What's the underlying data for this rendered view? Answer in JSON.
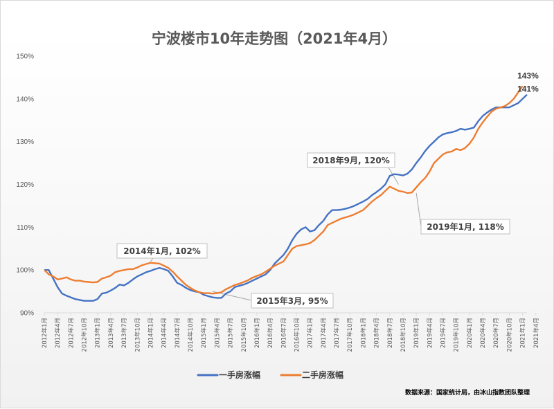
{
  "chart_data": {
    "type": "line",
    "title": "宁波楼市10年走势图（2021年4月）",
    "ylim": [
      90,
      150
    ],
    "yticks": [
      90,
      100,
      110,
      120,
      130,
      140,
      150
    ],
    "ytick_labels": [
      "90%",
      "100%",
      "110%",
      "120%",
      "130%",
      "140%",
      "150%"
    ],
    "grid": "none",
    "legend_position": "bottom",
    "x_tick_labels": [
      "2012年1月",
      "2012年4月",
      "2012年7月",
      "2012年10月",
      "2013年1月",
      "2013年4月",
      "2013年7月",
      "2013年10月",
      "2014年1月",
      "2014年4月",
      "2014年7月",
      "2014年10月",
      "2015年1月",
      "2015年4月",
      "2015年7月",
      "2015年10月",
      "2016年1月",
      "2016年4月",
      "2016年7月",
      "2016年10月",
      "2017年1月",
      "2017年4月",
      "2017年7月",
      "2017年10月",
      "2018年1月",
      "2018年4月",
      "2018年7月",
      "2018年10月",
      "2019年1月",
      "2019年4月",
      "2019年7月",
      "2019年10月",
      "2020年1月",
      "2020年4月",
      "2020年7月",
      "2020年10月",
      "2021年1月",
      "2021年4月"
    ],
    "series": [
      {
        "name": "一手房涨幅",
        "color": "#4472c4",
        "values": [
          100,
          100,
          98,
          96,
          94.5,
          94,
          93.6,
          93.2,
          93,
          92.8,
          92.8,
          92.8,
          93.2,
          94.5,
          94.7,
          95.2,
          95.8,
          96.6,
          96.4,
          97,
          97.8,
          98.5,
          99,
          99.5,
          99.8,
          100.2,
          100.5,
          100.2,
          99.8,
          98.5,
          97,
          96.5,
          95.8,
          95.3,
          95,
          94.8,
          94.2,
          93.9,
          93.6,
          93.5,
          93.5,
          94.5,
          95,
          96,
          96.3,
          96.6,
          97,
          97.5,
          98,
          98.5,
          99,
          100,
          101.5,
          102.5,
          103.5,
          105,
          107,
          108.5,
          109.5,
          110,
          109,
          109.3,
          110.5,
          111.5,
          113,
          114,
          114,
          114.1,
          114.3,
          114.6,
          115,
          115.5,
          116,
          116.6,
          117.5,
          118.2,
          119,
          120,
          122,
          122.4,
          122.3,
          122.1,
          122.5,
          123.5,
          125,
          126.3,
          127.8,
          129,
          130,
          131,
          131.7,
          132,
          132.2,
          132.5,
          133,
          132.8,
          133,
          133.3,
          134.8,
          136,
          136.8,
          137.5,
          138,
          138,
          138,
          138,
          138.5,
          139,
          140,
          141
        ]
      },
      {
        "name": "二手房涨幅",
        "color": "#ed7d31",
        "values": [
          100,
          99,
          98.5,
          97.8,
          98,
          98.3,
          97.8,
          97.5,
          97.5,
          97.3,
          97.2,
          97.1,
          97.2,
          98,
          98.3,
          98.7,
          99.5,
          99.8,
          100,
          100.2,
          100.2,
          100.6,
          101.1,
          101.4,
          101.7,
          101.6,
          101.5,
          101,
          100.5,
          99.6,
          98.5,
          97.5,
          96.5,
          95.8,
          95.2,
          94.8,
          94.6,
          94.6,
          94.5,
          94.6,
          94.8,
          95.5,
          96,
          96.5,
          96.8,
          97.2,
          97.6,
          98.2,
          98.6,
          99,
          99.6,
          100.3,
          101,
          101.5,
          102,
          103.5,
          105,
          105.6,
          105.8,
          106,
          106.3,
          107,
          108,
          109,
          110.5,
          111,
          111.5,
          112,
          112.3,
          112.6,
          113,
          113.5,
          114,
          115,
          116,
          116.8,
          117.5,
          118.5,
          119.5,
          119,
          118.5,
          118.3,
          118,
          118.1,
          119.3,
          120.5,
          121.5,
          123,
          125,
          126,
          127,
          127.5,
          127.7,
          128.3,
          128,
          128.5,
          129.5,
          131,
          133,
          134.5,
          135.8,
          137,
          137.7,
          138,
          138.3,
          139,
          140,
          141.5,
          143
        ]
      }
    ],
    "annotations": [
      {
        "text": "2014年1月, 102%",
        "series": "二手房涨幅",
        "x": "2014年1月",
        "y": 102
      },
      {
        "text": "2015年3月, 95%",
        "series": "一手房涨幅",
        "x": "2015年3月",
        "y": 95
      },
      {
        "text": "2018年9月, 120%",
        "series": "一手房涨幅",
        "x": "2018年9月",
        "y": 120
      },
      {
        "text": "2019年1月, 118%",
        "series": "二手房涨幅",
        "x": "2019年1月",
        "y": 118
      }
    ],
    "data_labels": [
      {
        "text": "143%",
        "series": "二手房涨幅",
        "x": "2021年4月",
        "y": 143
      },
      {
        "text": "141%",
        "series": "一手房涨幅",
        "x": "2021年4月",
        "y": 141
      }
    ]
  },
  "legend": {
    "items": [
      {
        "label": "一手房涨幅",
        "color": "#4472c4"
      },
      {
        "label": "二手房涨幅",
        "color": "#ed7d31"
      }
    ]
  },
  "footer": {
    "source": "数据来源：国家统计局，由冰山指数团队整理"
  }
}
